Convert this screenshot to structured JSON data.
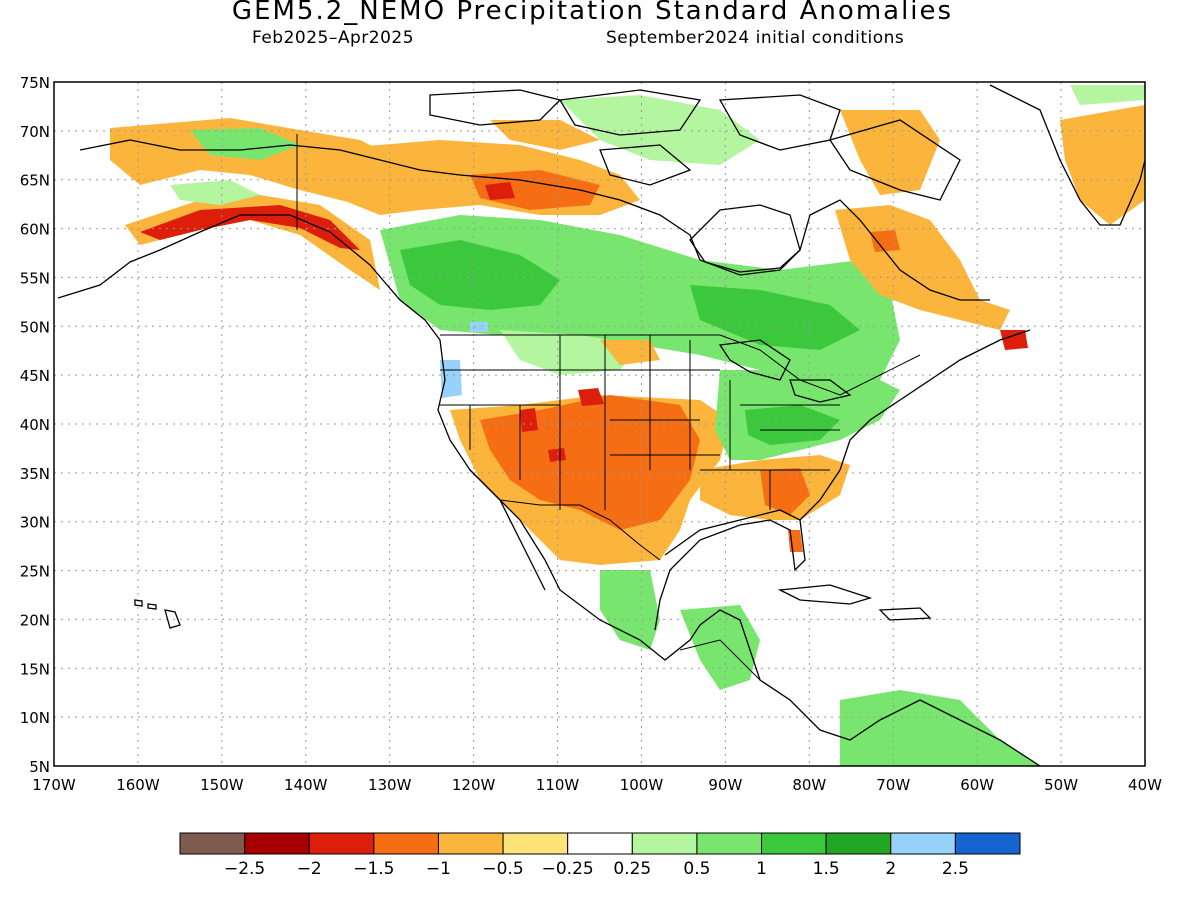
{
  "header": {
    "title": "GEM5.2_NEMO Precipitation Standard Anomalies",
    "period": "Feb2025–Apr2025",
    "initial_conditions": "September2024 initial conditions"
  },
  "map": {
    "lat_labels": [
      "75N",
      "70N",
      "65N",
      "60N",
      "55N",
      "50N",
      "45N",
      "40N",
      "35N",
      "30N",
      "25N",
      "20N",
      "15N",
      "10N",
      "5N"
    ],
    "lon_labels": [
      "170W",
      "160W",
      "150W",
      "140W",
      "130W",
      "120W",
      "110W",
      "100W",
      "90W",
      "80W",
      "70W",
      "60W",
      "50W",
      "40W"
    ],
    "extent": {
      "lon": [
        -170,
        -40
      ],
      "lat": [
        5,
        75
      ]
    },
    "grid": "dotted"
  },
  "legend": {
    "colors": [
      "#7f5b4f",
      "#a80000",
      "#dc1e0a",
      "#f56e14",
      "#fbb43c",
      "#fde37a",
      "#ffffff",
      "#b4f5a0",
      "#78e66e",
      "#3cc83c",
      "#22a522",
      "#96d2fa",
      "#1464d2"
    ],
    "labels": [
      "−2.5",
      "−2",
      "−1.5",
      "−1",
      "−0.5",
      "−0.25",
      "0.25",
      "0.5",
      "1",
      "1.5",
      "2",
      "2.5"
    ]
  },
  "colors": {
    "dry_strong": "#dc1e0a",
    "dry": "#f56e14",
    "dry_weak": "#fbb43c",
    "wet_weak": "#b4f5a0",
    "wet": "#78e66e",
    "wet_strong": "#3cc83c",
    "wet_very": "#96d2fa"
  }
}
